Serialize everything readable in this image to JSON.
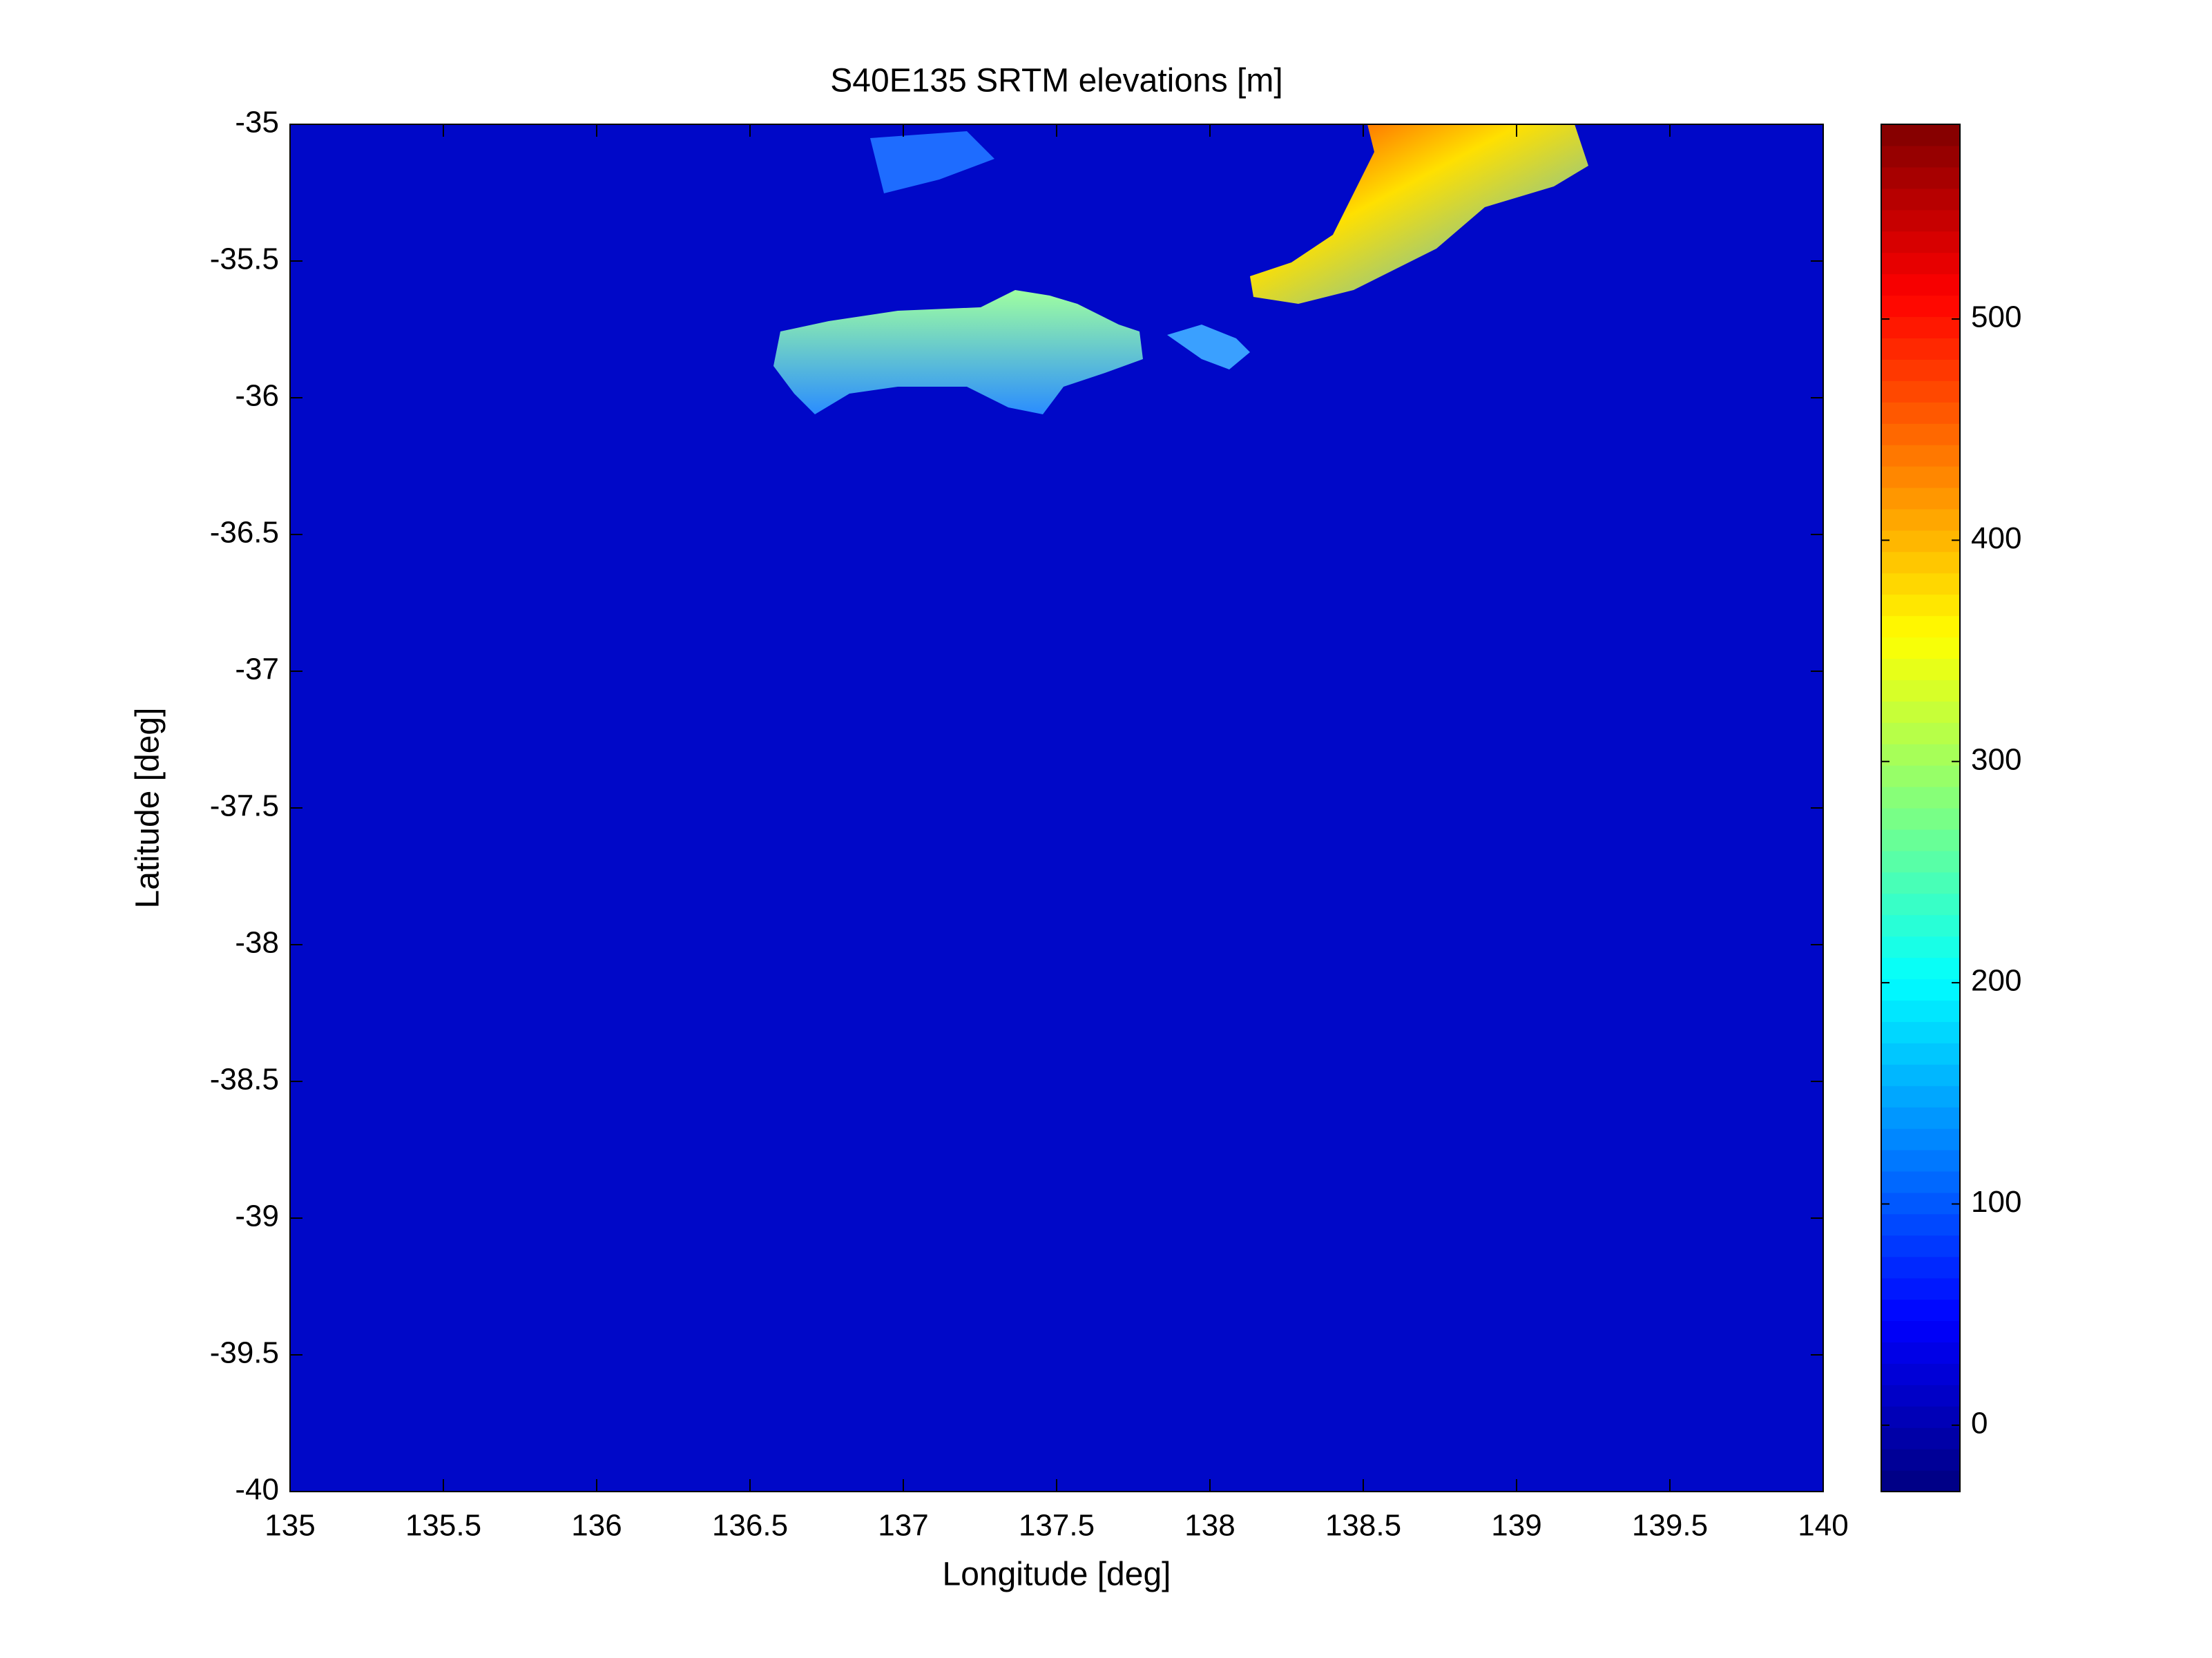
{
  "chart_data": {
    "type": "heatmap",
    "title": "S40E135 SRTM elevations [m]",
    "x_label": "Longitude [deg]",
    "y_label": "Latitude [deg]",
    "xlim": [
      135,
      140
    ],
    "xticks": [
      135,
      135.5,
      136,
      136.5,
      137,
      137.5,
      138,
      138.5,
      139,
      139.5,
      140
    ],
    "ylim": [
      -40,
      -35
    ],
    "yticks": [
      -40,
      -39.5,
      -39,
      -38.5,
      -38,
      -37.5,
      -37,
      -36.5,
      -36,
      -35.5,
      -35
    ],
    "colormap": "jet",
    "clim": [
      -30,
      588
    ],
    "colorbar_ticks": [
      0,
      100,
      200,
      300,
      400,
      500
    ]
  }
}
